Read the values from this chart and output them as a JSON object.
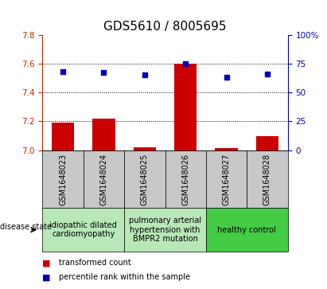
{
  "title": "GDS5610 / 8005695",
  "samples": [
    "GSM1648023",
    "GSM1648024",
    "GSM1648025",
    "GSM1648026",
    "GSM1648027",
    "GSM1648028"
  ],
  "red_values": [
    7.19,
    7.22,
    7.02,
    7.6,
    7.015,
    7.1
  ],
  "blue_values": [
    68,
    67,
    65,
    75,
    63,
    66
  ],
  "ylim_left": [
    7.0,
    7.8
  ],
  "ylim_right": [
    0,
    100
  ],
  "yticks_left": [
    7.0,
    7.2,
    7.4,
    7.6,
    7.8
  ],
  "yticks_right": [
    0,
    25,
    50,
    75,
    100
  ],
  "ytick_labels_right": [
    "0",
    "25",
    "50",
    "75",
    "100%"
  ],
  "grid_lines": [
    7.2,
    7.4,
    7.6
  ],
  "bar_color": "#cc0000",
  "dot_color": "#0000bb",
  "bar_width": 0.55,
  "sample_box_color": "#c8c8c8",
  "group_labels": [
    "idiopathic dilated\ncardiomyopathy",
    "pulmonary arterial\nhypertension with\nBMPR2 mutation",
    "healthy control"
  ],
  "group_colors": [
    "#b8e8b8",
    "#b8e8b8",
    "#44cc44"
  ],
  "group_starts": [
    0,
    2,
    4
  ],
  "group_ends": [
    2,
    4,
    6
  ],
  "legend_red_label": "transformed count",
  "legend_blue_label": "percentile rank within the sample",
  "disease_state_label": "disease state",
  "title_fontsize": 11,
  "tick_fontsize": 7.5,
  "label_fontsize": 7,
  "sample_fontsize": 7
}
